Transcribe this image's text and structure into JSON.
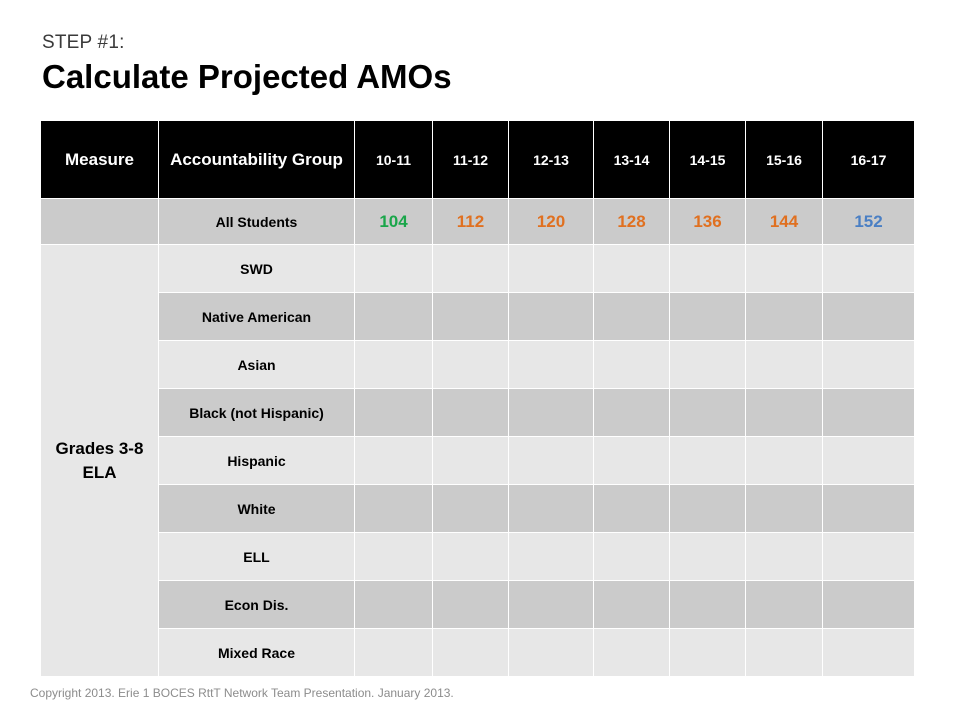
{
  "slide": {
    "step": "STEP #1:",
    "title": "Calculate Projected AMOs",
    "footer": "Copyright 2013. Erie 1 BOCES RttT Network Team Presentation. January 2013."
  },
  "table": {
    "headers": {
      "measure": "Measure",
      "group": "Accountability Group",
      "years": [
        "10-11",
        "11-12",
        "12-13",
        "13-14",
        "14-15",
        "15-16",
        "16-17"
      ]
    },
    "all_students": {
      "label": "All Students",
      "values": [
        "104",
        "112",
        "120",
        "128",
        "136",
        "144",
        "152"
      ],
      "colors": [
        "#1aa64a",
        "#e07020",
        "#e07020",
        "#e07020",
        "#e07020",
        "#e07020",
        "#4a7fc4"
      ]
    },
    "measure_label": "Grades 3-8 ELA",
    "groups": [
      "SWD",
      "Native American",
      "Asian",
      "Black (not Hispanic)",
      "Hispanic",
      "White",
      "ELL",
      "Econ Dis.",
      "Mixed Race"
    ]
  }
}
